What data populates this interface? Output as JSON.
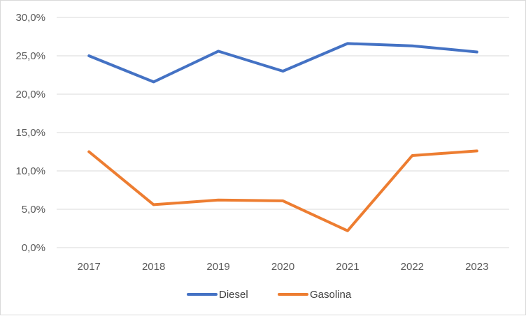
{
  "chart_data": {
    "type": "line",
    "x": [
      "2017",
      "2018",
      "2019",
      "2020",
      "2021",
      "2022",
      "2023"
    ],
    "series": [
      {
        "name": "Diesel",
        "values": [
          25.0,
          21.6,
          25.6,
          23.0,
          26.6,
          26.3,
          25.5
        ],
        "color": "#4472c4"
      },
      {
        "name": "Gasolina",
        "values": [
          12.5,
          5.6,
          6.2,
          6.1,
          2.2,
          12.0,
          12.6
        ],
        "color": "#ed7d31"
      }
    ],
    "ylim": [
      0,
      30
    ],
    "yticks": [
      {
        "value": 0,
        "label": "0,0%"
      },
      {
        "value": 5,
        "label": "5,0%"
      },
      {
        "value": 10,
        "label": "10,0%"
      },
      {
        "value": 15,
        "label": "15,0%"
      },
      {
        "value": 20,
        "label": "20,0%"
      },
      {
        "value": 25,
        "label": "25,0%"
      },
      {
        "value": 30,
        "label": "30,0%"
      }
    ],
    "grid": true,
    "gridColor": "#d9d9d9",
    "legend_position": "bottom"
  }
}
